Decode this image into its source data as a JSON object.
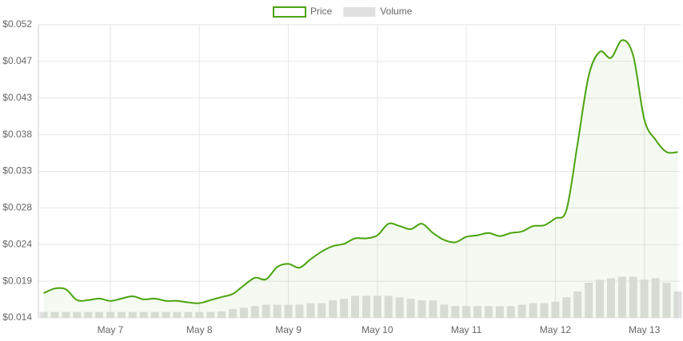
{
  "chart_data": {
    "type": "line",
    "categories": [
      null,
      null,
      null,
      null,
      null,
      null,
      "May 7",
      null,
      null,
      null,
      null,
      null,
      null,
      null,
      "May 8",
      null,
      null,
      null,
      null,
      null,
      null,
      null,
      "May 9",
      null,
      null,
      null,
      null,
      null,
      null,
      null,
      "May 10",
      null,
      null,
      null,
      null,
      null,
      null,
      null,
      "May 11",
      null,
      null,
      null,
      null,
      null,
      null,
      null,
      "May 12",
      null,
      null,
      null,
      null,
      null,
      null,
      null,
      "May 13",
      null,
      null,
      null
    ],
    "series": [
      {
        "name": "Price",
        "color": "#4aa30e",
        "values": [
          0.0172,
          0.0178,
          0.0177,
          0.0163,
          0.0163,
          0.0165,
          0.0162,
          0.0165,
          0.0168,
          0.0164,
          0.0165,
          0.0162,
          0.0162,
          0.016,
          0.0159,
          0.0163,
          0.0167,
          0.0171,
          0.0182,
          0.0192,
          0.019,
          0.0206,
          0.021,
          0.0205,
          0.0216,
          0.0226,
          0.0233,
          0.0236,
          0.0243,
          0.0243,
          0.0247,
          0.0262,
          0.0259,
          0.0255,
          0.0262,
          0.025,
          0.0241,
          0.0238,
          0.0245,
          0.0247,
          0.025,
          0.0246,
          0.025,
          0.0252,
          0.0259,
          0.026,
          0.0269,
          0.028,
          0.0366,
          0.0454,
          0.0485,
          0.0477,
          0.05,
          0.048,
          0.0397,
          0.0371,
          0.0355,
          0.0355
        ]
      },
      {
        "name": "Volume",
        "color": "#e0e0e0",
        "axis": "y2",
        "values": [
          2,
          2,
          2,
          2,
          2,
          2,
          2,
          2,
          2,
          2,
          2,
          2,
          2,
          2,
          2,
          2,
          2.2,
          3,
          3.5,
          4,
          4.5,
          4.5,
          4.5,
          4.5,
          5,
          5,
          6,
          6.5,
          7.5,
          7.5,
          7.5,
          7.5,
          7,
          6.5,
          6,
          6,
          4.5,
          4,
          4,
          4,
          4,
          4,
          4,
          4.5,
          5,
          5,
          5.5,
          7,
          9,
          12,
          13,
          13.5,
          14,
          14,
          13,
          13.5,
          12,
          9
        ]
      }
    ],
    "ylim": [
      0.014,
      0.052
    ],
    "yticks": [
      {
        "value": 0.014,
        "label": "$0.014"
      },
      {
        "value": 0.01875,
        "label": "$0.019"
      },
      {
        "value": 0.0235,
        "label": "$0.024"
      },
      {
        "value": 0.02825,
        "label": "$0.028"
      },
      {
        "value": 0.033,
        "label": "$0.033"
      },
      {
        "value": 0.03775,
        "label": "$0.038"
      },
      {
        "value": 0.0425,
        "label": "$0.043"
      },
      {
        "value": 0.04725,
        "label": "$0.047"
      },
      {
        "value": 0.052,
        "label": "$0.052"
      }
    ],
    "y2lim": [
      0,
      100
    ],
    "grid": true
  }
}
